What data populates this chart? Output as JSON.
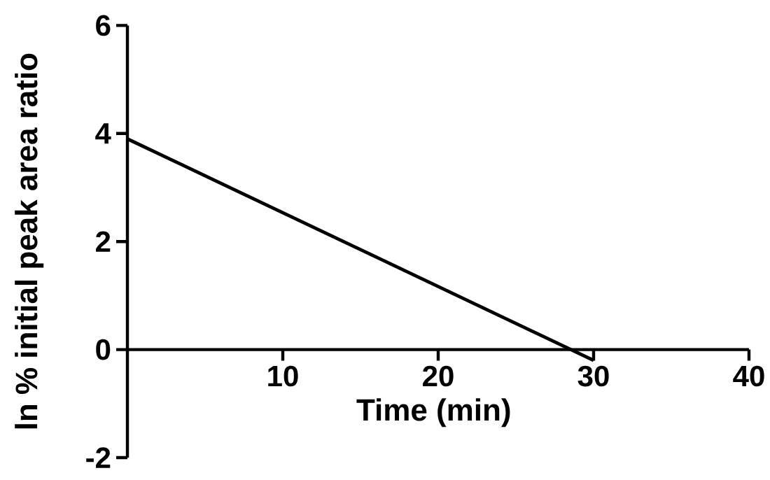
{
  "chart_data": {
    "type": "line",
    "xlabel": "Time (min)",
    "ylabel": "ln % initial peak area ratio",
    "x": [
      0,
      30
    ],
    "series": [
      {
        "color": "#000000",
        "values": [
          3.9,
          -0.2
        ]
      }
    ],
    "xlim": [
      0,
      40
    ],
    "xticks": [
      10,
      20,
      30,
      40
    ],
    "ylim": [
      -2,
      6
    ],
    "yticks": [
      -2,
      0,
      2,
      4,
      6
    ],
    "grid": false,
    "marker": "none",
    "line_style": "solid"
  }
}
